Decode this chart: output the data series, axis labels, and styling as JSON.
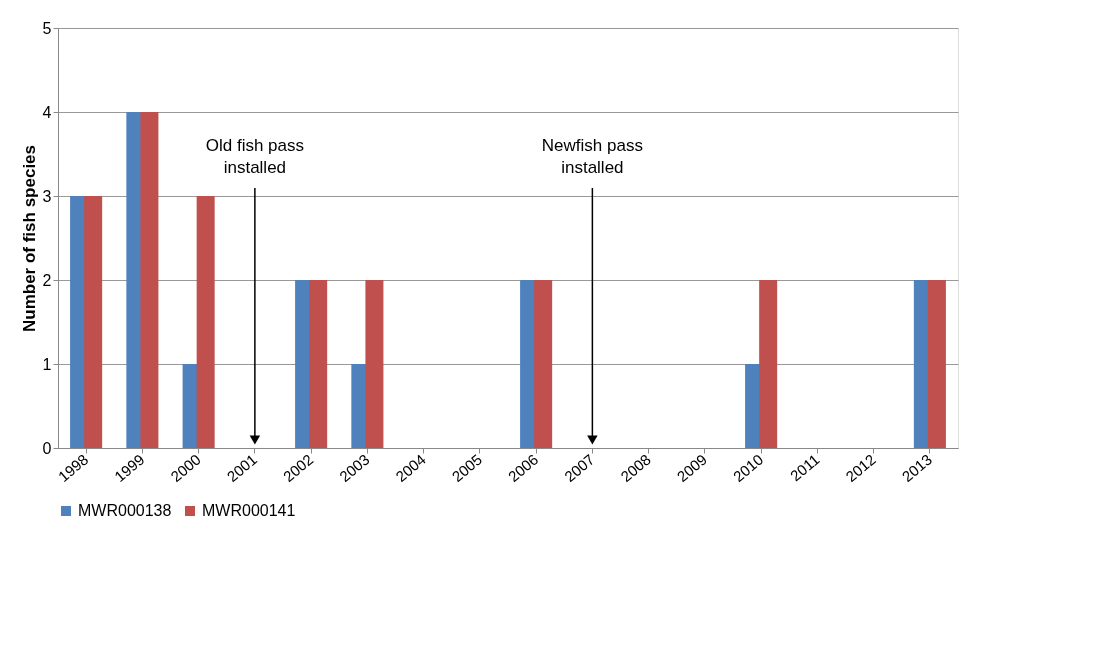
{
  "chart_data": {
    "type": "bar",
    "ylabel": "Number of fish species",
    "categories": [
      "1998",
      "1999",
      "2000",
      "2001",
      "2002",
      "2003",
      "2004",
      "2005",
      "2006",
      "2007",
      "2008",
      "2009",
      "2010",
      "2011",
      "2012",
      "2013"
    ],
    "series": [
      {
        "name": "MWR000138",
        "color": "#4f81bd",
        "values": [
          3,
          4,
          1,
          0,
          2,
          1,
          0,
          0,
          2,
          0,
          0,
          0,
          1,
          0,
          0,
          2
        ]
      },
      {
        "name": "MWR000141",
        "color": "#c0504d",
        "values": [
          3,
          4,
          3,
          0,
          2,
          2,
          0,
          0,
          2,
          0,
          0,
          0,
          2,
          0,
          0,
          2
        ]
      }
    ],
    "ylim": [
      0,
      5
    ],
    "yticks": [
      0,
      1,
      2,
      3,
      4,
      5
    ],
    "grid": "y",
    "legend": "bottom",
    "annotations": [
      {
        "text": "Old fish pass\ninstalled",
        "x": "2001",
        "y": 0
      },
      {
        "text": "Newfish pass\ninstalled",
        "x": "2007",
        "y": 0
      }
    ]
  }
}
